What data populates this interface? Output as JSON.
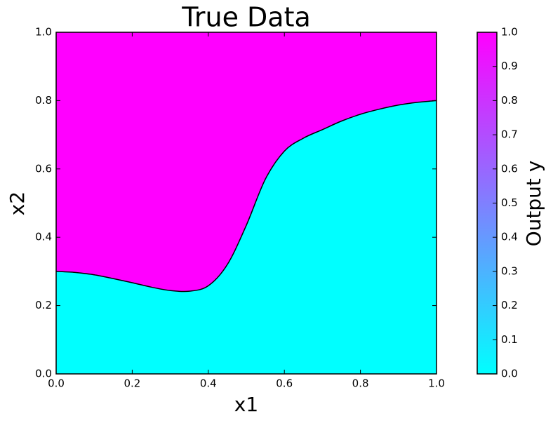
{
  "chart_data": {
    "type": "area",
    "title": "True Data",
    "xlabel": "x1",
    "ylabel": "x2",
    "x": [
      0,
      0.05,
      0.1,
      0.15,
      0.2,
      0.25,
      0.3,
      0.35,
      0.4,
      0.45,
      0.5,
      0.55,
      0.6,
      0.65,
      0.7,
      0.75,
      0.8,
      0.85,
      0.9,
      0.95,
      1.0
    ],
    "values": [
      0.3,
      0.297,
      0.29,
      0.279,
      0.267,
      0.254,
      0.244,
      0.242,
      0.258,
      0.32,
      0.435,
      0.57,
      0.652,
      0.69,
      0.715,
      0.74,
      0.76,
      0.775,
      0.787,
      0.795,
      0.8
    ],
    "below_color": "#00ffff",
    "above_color": "#ff00ff",
    "xlim": [
      0,
      1
    ],
    "ylim": [
      0,
      1
    ],
    "xticks": [
      {
        "value": 0,
        "label": "0.0"
      },
      {
        "value": 0.2,
        "label": "0.2"
      },
      {
        "value": 0.4,
        "label": "0.4"
      },
      {
        "value": 0.6,
        "label": "0.6"
      },
      {
        "value": 0.8,
        "label": "0.8"
      },
      {
        "value": 1,
        "label": "1.0"
      }
    ],
    "yticks": [
      {
        "value": 0,
        "label": "0.0"
      },
      {
        "value": 0.2,
        "label": "0.2"
      },
      {
        "value": 0.4,
        "label": "0.4"
      },
      {
        "value": 0.6,
        "label": "0.6"
      },
      {
        "value": 0.8,
        "label": "0.8"
      },
      {
        "value": 1,
        "label": "1.0"
      }
    ],
    "colorbar": {
      "label": "Output y",
      "lim": [
        0,
        1
      ],
      "colors": [
        "#00ffff",
        "#ff00ff"
      ],
      "ticks": [
        {
          "value": 0,
          "label": "0.0"
        },
        {
          "value": 0.1,
          "label": "0.1"
        },
        {
          "value": 0.2,
          "label": "0.2"
        },
        {
          "value": 0.3,
          "label": "0.3"
        },
        {
          "value": 0.4,
          "label": "0.4"
        },
        {
          "value": 0.5,
          "label": "0.5"
        },
        {
          "value": 0.6,
          "label": "0.6"
        },
        {
          "value": 0.7,
          "label": "0.7"
        },
        {
          "value": 0.8,
          "label": "0.8"
        },
        {
          "value": 0.9,
          "label": "0.9"
        },
        {
          "value": 1,
          "label": "1.0"
        }
      ]
    }
  }
}
